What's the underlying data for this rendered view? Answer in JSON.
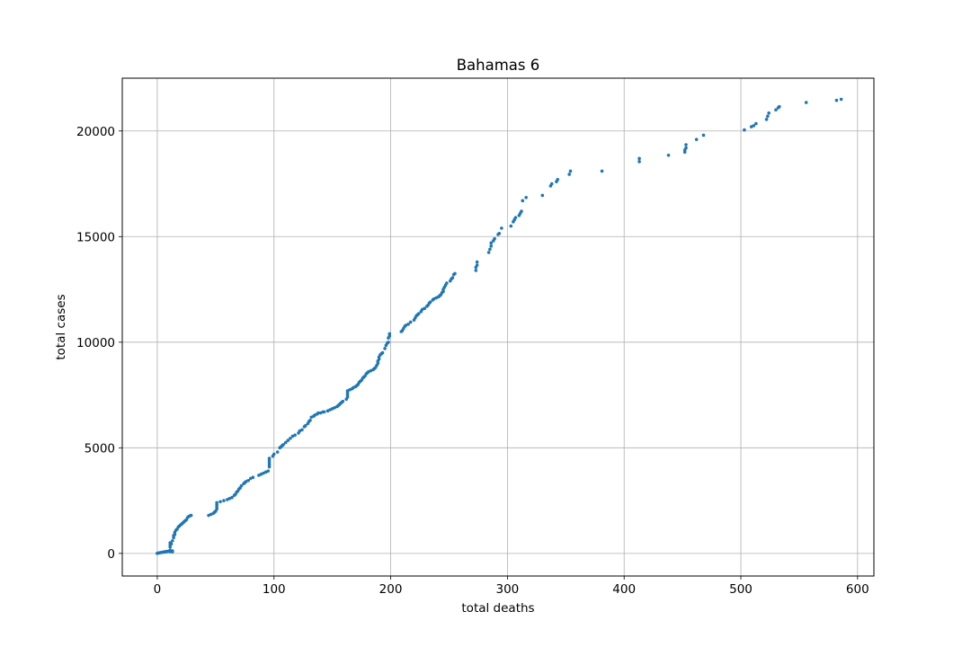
{
  "chart_data": {
    "type": "scatter",
    "title": "Bahamas 6",
    "xlabel": "total deaths",
    "ylabel": "total cases",
    "xlim": [
      -30,
      614
    ],
    "ylim": [
      -1070,
      22500
    ],
    "xticks": [
      0,
      100,
      200,
      300,
      400,
      500,
      600
    ],
    "yticks": [
      0,
      5000,
      10000,
      15000,
      20000
    ],
    "grid": true,
    "marker_color": "#1f77b4",
    "series": [
      {
        "points": [
          [
            0,
            0
          ],
          [
            0,
            10
          ],
          [
            1,
            20
          ],
          [
            2,
            30
          ],
          [
            3,
            40
          ],
          [
            4,
            50
          ],
          [
            5,
            60
          ],
          [
            6,
            70
          ],
          [
            7,
            80
          ],
          [
            8,
            90
          ],
          [
            9,
            100
          ],
          [
            10,
            110
          ],
          [
            11,
            90
          ],
          [
            11,
            150
          ],
          [
            11,
            300
          ],
          [
            11,
            400
          ],
          [
            11,
            500
          ],
          [
            12,
            450
          ],
          [
            12,
            100
          ],
          [
            13,
            80
          ],
          [
            13,
            120
          ],
          [
            13,
            600
          ],
          [
            14,
            750
          ],
          [
            14,
            850
          ],
          [
            15,
            900
          ],
          [
            15,
            1000
          ],
          [
            16,
            1100
          ],
          [
            17,
            1150
          ],
          [
            18,
            1250
          ],
          [
            19,
            1300
          ],
          [
            20,
            1350
          ],
          [
            21,
            1400
          ],
          [
            22,
            1450
          ],
          [
            23,
            1500
          ],
          [
            24,
            1550
          ],
          [
            25,
            1600
          ],
          [
            26,
            1700
          ],
          [
            27,
            1750
          ],
          [
            28,
            1780
          ],
          [
            29,
            1800
          ],
          [
            44,
            1800
          ],
          [
            46,
            1850
          ],
          [
            48,
            1900
          ],
          [
            49,
            1950
          ],
          [
            50,
            2000
          ],
          [
            51,
            2100
          ],
          [
            51,
            2200
          ],
          [
            51,
            2300
          ],
          [
            51,
            2400
          ],
          [
            54,
            2450
          ],
          [
            57,
            2500
          ],
          [
            60,
            2550
          ],
          [
            62,
            2600
          ],
          [
            64,
            2650
          ],
          [
            66,
            2750
          ],
          [
            67,
            2800
          ],
          [
            68,
            2900
          ],
          [
            69,
            2950
          ],
          [
            70,
            3050
          ],
          [
            71,
            3100
          ],
          [
            72,
            3200
          ],
          [
            74,
            3300
          ],
          [
            75,
            3350
          ],
          [
            76,
            3400
          ],
          [
            78,
            3450
          ],
          [
            80,
            3550
          ],
          [
            82,
            3600
          ],
          [
            87,
            3700
          ],
          [
            89,
            3750
          ],
          [
            91,
            3800
          ],
          [
            93,
            3850
          ],
          [
            95,
            3900
          ],
          [
            96,
            4100
          ],
          [
            96,
            4200
          ],
          [
            96,
            4300
          ],
          [
            96,
            4400
          ],
          [
            96,
            4500
          ],
          [
            99,
            4600
          ],
          [
            100,
            4700
          ],
          [
            103,
            4800
          ],
          [
            105,
            5000
          ],
          [
            106,
            5050
          ],
          [
            107,
            5100
          ],
          [
            108,
            5150
          ],
          [
            110,
            5250
          ],
          [
            112,
            5350
          ],
          [
            114,
            5450
          ],
          [
            116,
            5550
          ],
          [
            118,
            5600
          ],
          [
            121,
            5700
          ],
          [
            122,
            5800
          ],
          [
            124,
            5850
          ],
          [
            126,
            6000
          ],
          [
            127,
            6050
          ],
          [
            129,
            6150
          ],
          [
            130,
            6250
          ],
          [
            131,
            6300
          ],
          [
            132,
            6450
          ],
          [
            134,
            6500
          ],
          [
            135,
            6550
          ],
          [
            137,
            6600
          ],
          [
            138,
            6650
          ],
          [
            140,
            6650
          ],
          [
            142,
            6700
          ],
          [
            143,
            6700
          ],
          [
            146,
            6750
          ],
          [
            148,
            6800
          ],
          [
            150,
            6850
          ],
          [
            152,
            6900
          ],
          [
            154,
            6950
          ],
          [
            155,
            7000
          ],
          [
            156,
            7050
          ],
          [
            157,
            7100
          ],
          [
            158,
            7150
          ],
          [
            159,
            7200
          ],
          [
            162,
            7300
          ],
          [
            163,
            7400
          ],
          [
            163,
            7500
          ],
          [
            163,
            7600
          ],
          [
            163,
            7700
          ],
          [
            165,
            7750
          ],
          [
            167,
            7800
          ],
          [
            168,
            7850
          ],
          [
            170,
            7900
          ],
          [
            171,
            7950
          ],
          [
            172,
            8000
          ],
          [
            173,
            8100
          ],
          [
            174,
            8150
          ],
          [
            175,
            8200
          ],
          [
            176,
            8300
          ],
          [
            177,
            8350
          ],
          [
            178,
            8400
          ],
          [
            179,
            8500
          ],
          [
            180,
            8550
          ],
          [
            181,
            8600
          ],
          [
            183,
            8650
          ],
          [
            185,
            8700
          ],
          [
            186,
            8750
          ],
          [
            187,
            8800
          ],
          [
            188,
            8900
          ],
          [
            189,
            9000
          ],
          [
            189,
            9100
          ],
          [
            190,
            9200
          ],
          [
            190,
            9300
          ],
          [
            191,
            9400
          ],
          [
            192,
            9450
          ],
          [
            193,
            9500
          ],
          [
            195,
            9700
          ],
          [
            196,
            9850
          ],
          [
            197,
            9950
          ],
          [
            198,
            10000
          ],
          [
            198,
            10200
          ],
          [
            199,
            10300
          ],
          [
            199,
            10400
          ],
          [
            209,
            10500
          ],
          [
            210,
            10550
          ],
          [
            211,
            10650
          ],
          [
            212,
            10750
          ],
          [
            213,
            10800
          ],
          [
            215,
            10850
          ],
          [
            217,
            10950
          ],
          [
            220,
            11050
          ],
          [
            221,
            11150
          ],
          [
            222,
            11250
          ],
          [
            223,
            11300
          ],
          [
            224,
            11350
          ],
          [
            226,
            11450
          ],
          [
            227,
            11550
          ],
          [
            229,
            11600
          ],
          [
            231,
            11700
          ],
          [
            232,
            11750
          ],
          [
            233,
            11850
          ],
          [
            234,
            11900
          ],
          [
            236,
            12000
          ],
          [
            237,
            12050
          ],
          [
            239,
            12100
          ],
          [
            241,
            12150
          ],
          [
            242,
            12200
          ],
          [
            243,
            12250
          ],
          [
            244,
            12350
          ],
          [
            245,
            12400
          ],
          [
            245,
            12500
          ],
          [
            246,
            12600
          ],
          [
            247,
            12700
          ],
          [
            248,
            12800
          ],
          [
            251,
            12900
          ],
          [
            252,
            13000
          ],
          [
            253,
            13050
          ],
          [
            254,
            13200
          ],
          [
            255,
            13250
          ],
          [
            273,
            13400
          ],
          [
            273,
            13550
          ],
          [
            274,
            13650
          ],
          [
            274,
            13800
          ],
          [
            284,
            14250
          ],
          [
            285,
            14400
          ],
          [
            286,
            14550
          ],
          [
            286,
            14700
          ],
          [
            288,
            14800
          ],
          [
            289,
            14900
          ],
          [
            292,
            15100
          ],
          [
            293,
            15150
          ],
          [
            295,
            15400
          ],
          [
            303,
            15500
          ],
          [
            305,
            15700
          ],
          [
            306,
            15800
          ],
          [
            307,
            15900
          ],
          [
            310,
            16000
          ],
          [
            311,
            16100
          ],
          [
            312,
            16200
          ],
          [
            313,
            16700
          ],
          [
            316,
            16850
          ],
          [
            330,
            16950
          ],
          [
            337,
            17400
          ],
          [
            338,
            17500
          ],
          [
            342,
            17600
          ],
          [
            343,
            17700
          ],
          [
            353,
            17950
          ],
          [
            354,
            18100
          ],
          [
            381,
            18100
          ],
          [
            413,
            18550
          ],
          [
            413,
            18700
          ],
          [
            438,
            18850
          ],
          [
            452,
            19000
          ],
          [
            452,
            19100
          ],
          [
            453,
            19200
          ],
          [
            453,
            19350
          ],
          [
            462,
            19600
          ],
          [
            468,
            19800
          ],
          [
            503,
            20050
          ],
          [
            509,
            20200
          ],
          [
            511,
            20250
          ],
          [
            513,
            20350
          ],
          [
            522,
            20550
          ],
          [
            523,
            20700
          ],
          [
            524,
            20850
          ],
          [
            530,
            21000
          ],
          [
            532,
            21100
          ],
          [
            533,
            21150
          ],
          [
            556,
            21350
          ],
          [
            582,
            21450
          ],
          [
            586,
            21500
          ]
        ]
      }
    ]
  }
}
